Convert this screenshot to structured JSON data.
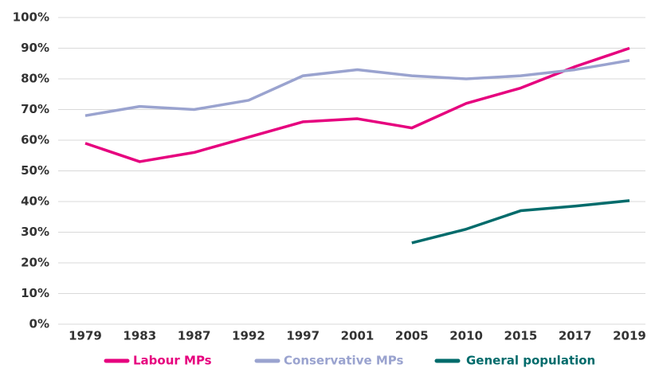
{
  "chart_data": {
    "type": "line",
    "categories": [
      "1979",
      "1983",
      "1987",
      "1992",
      "1997",
      "2001",
      "2005",
      "2010",
      "2015",
      "2017",
      "2019"
    ],
    "series": [
      {
        "name": "Labour MPs",
        "color": "#e6007e",
        "values": [
          59,
          53,
          56,
          61,
          66,
          67,
          64,
          72,
          77,
          84,
          90
        ]
      },
      {
        "name": "Conservative MPs",
        "color": "#9aa3cf",
        "values": [
          68,
          71,
          70,
          73,
          81,
          83,
          81,
          80,
          81,
          83,
          86
        ]
      },
      {
        "name": "General population",
        "color": "#006b6b",
        "values": [
          null,
          null,
          null,
          null,
          null,
          null,
          26.5,
          31,
          37,
          38.5,
          40.3
        ]
      }
    ],
    "ylim": [
      0,
      100
    ],
    "yticks": [
      {
        "value": 0,
        "label": "0%"
      },
      {
        "value": 10,
        "label": "10%"
      },
      {
        "value": 20,
        "label": "20%"
      },
      {
        "value": 30,
        "label": "30%"
      },
      {
        "value": 40,
        "label": "40%"
      },
      {
        "value": 50,
        "label": "50%"
      },
      {
        "value": 60,
        "label": "60%"
      },
      {
        "value": 70,
        "label": "70%"
      },
      {
        "value": 80,
        "label": "80%"
      },
      {
        "value": 90,
        "label": "90%"
      },
      {
        "value": 100,
        "label": "100%"
      }
    ],
    "grid": true,
    "legend": "bottom"
  }
}
